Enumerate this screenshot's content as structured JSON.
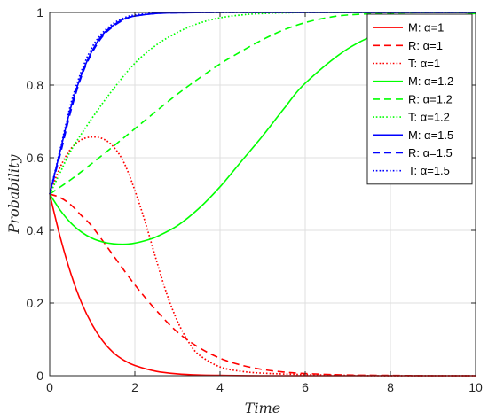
{
  "chart_data": {
    "type": "line",
    "title": "",
    "xlabel": "Time",
    "ylabel": "Probability",
    "xlim": [
      0,
      10
    ],
    "ylim": [
      0,
      1
    ],
    "xticks": [
      0,
      2,
      4,
      6,
      8,
      10
    ],
    "yticks": [
      0,
      0.2,
      0.4,
      0.6,
      0.8,
      1
    ],
    "xtick_labels": [
      "0",
      "2",
      "4",
      "6",
      "8",
      "10"
    ],
    "ytick_labels": [
      "0",
      "0.2",
      "0.4",
      "0.6",
      "0.8",
      "1"
    ],
    "grid": true,
    "legend_position": "top-right",
    "series": [
      {
        "name": "M: α=1",
        "color": "#ff0000",
        "dash": "solid",
        "x": [
          0,
          0.25,
          0.5,
          0.75,
          1,
          1.25,
          1.5,
          1.75,
          2,
          2.5,
          3,
          3.5,
          4,
          5,
          6,
          7,
          8,
          9,
          10
        ],
        "y": [
          0.5,
          0.38,
          0.28,
          0.2,
          0.14,
          0.095,
          0.063,
          0.042,
          0.028,
          0.012,
          0.005,
          0.002,
          0.001,
          0,
          0,
          0,
          0,
          0,
          0
        ]
      },
      {
        "name": "R: α=1",
        "color": "#ff0000",
        "dash": "dashed",
        "x": [
          0,
          0.25,
          0.5,
          0.75,
          1,
          1.5,
          2,
          2.5,
          3,
          3.5,
          4,
          4.5,
          5,
          5.5,
          6,
          7,
          8,
          9,
          10
        ],
        "y": [
          0.5,
          0.49,
          0.47,
          0.44,
          0.41,
          0.33,
          0.25,
          0.18,
          0.12,
          0.078,
          0.048,
          0.029,
          0.017,
          0.01,
          0.006,
          0.002,
          0.001,
          0,
          0
        ]
      },
      {
        "name": "T: α=1",
        "color": "#ff0000",
        "dash": "dotted",
        "x": [
          0,
          0.25,
          0.5,
          0.75,
          1,
          1.25,
          1.5,
          1.75,
          2,
          2.25,
          2.5,
          2.75,
          3,
          3.25,
          3.5,
          4,
          4.5,
          5,
          6,
          7,
          8,
          10
        ],
        "y": [
          0.5,
          0.575,
          0.625,
          0.65,
          0.657,
          0.652,
          0.63,
          0.585,
          0.51,
          0.42,
          0.32,
          0.225,
          0.15,
          0.095,
          0.058,
          0.024,
          0.012,
          0.007,
          0.003,
          0.001,
          0,
          0
        ]
      },
      {
        "name": "M: α=1.2",
        "color": "#00ff00",
        "dash": "solid",
        "x": [
          0,
          0.25,
          0.5,
          0.75,
          1,
          1.25,
          1.5,
          1.8,
          2,
          2.25,
          2.5,
          3,
          3.5,
          4,
          4.5,
          5,
          5.5,
          6,
          7,
          8,
          9,
          10
        ],
        "y": [
          0.5,
          0.455,
          0.42,
          0.395,
          0.378,
          0.368,
          0.363,
          0.362,
          0.365,
          0.372,
          0.382,
          0.413,
          0.46,
          0.52,
          0.59,
          0.66,
          0.735,
          0.805,
          0.9,
          0.955,
          0.985,
          0.997
        ]
      },
      {
        "name": "R: α=1.2",
        "color": "#00ff00",
        "dash": "dashed",
        "x": [
          0,
          0.5,
          1,
          1.5,
          2,
          2.5,
          3,
          3.5,
          4,
          4.5,
          5,
          5.5,
          6,
          6.5,
          7,
          8,
          9,
          10
        ],
        "y": [
          0.5,
          0.54,
          0.585,
          0.632,
          0.68,
          0.728,
          0.775,
          0.818,
          0.858,
          0.893,
          0.925,
          0.952,
          0.972,
          0.985,
          0.993,
          0.998,
          1,
          1
        ]
      },
      {
        "name": "T: α=1.2",
        "color": "#00ff00",
        "dash": "dotted",
        "x": [
          0,
          0.25,
          0.5,
          1,
          1.5,
          2,
          2.5,
          3,
          3.5,
          4,
          4.5,
          5,
          6,
          7,
          8,
          10
        ],
        "y": [
          0.5,
          0.56,
          0.62,
          0.71,
          0.79,
          0.86,
          0.91,
          0.945,
          0.97,
          0.985,
          0.993,
          0.997,
          1,
          1,
          1,
          1
        ]
      },
      {
        "name": "M: α=1.5",
        "color": "#0000ff",
        "dash": "solid",
        "x": [
          0,
          0.25,
          0.5,
          0.75,
          1,
          1.25,
          1.5,
          1.75,
          2,
          2.5,
          3,
          4,
          5,
          6,
          8,
          10
        ],
        "y": [
          0.5,
          0.62,
          0.74,
          0.83,
          0.895,
          0.94,
          0.965,
          0.982,
          0.99,
          0.997,
          0.999,
          1,
          1,
          1,
          1,
          1
        ]
      },
      {
        "name": "R: α=1.5",
        "color": "#0000ff",
        "dash": "dashed",
        "x": [
          0,
          0.25,
          0.5,
          0.75,
          1,
          1.25,
          1.5,
          1.75,
          2,
          2.5,
          3,
          4,
          5,
          6,
          8,
          10
        ],
        "y": [
          0.5,
          0.61,
          0.73,
          0.825,
          0.89,
          0.935,
          0.962,
          0.98,
          0.99,
          0.997,
          0.999,
          1,
          1,
          1,
          1,
          1
        ]
      },
      {
        "name": "T: α=1.5",
        "color": "#0000ff",
        "dash": "dotted",
        "x": [
          0,
          0.25,
          0.5,
          0.75,
          1,
          1.25,
          1.5,
          1.75,
          2,
          2.5,
          3,
          4,
          5,
          6,
          8,
          10
        ],
        "y": [
          0.5,
          0.625,
          0.75,
          0.84,
          0.905,
          0.945,
          0.97,
          0.985,
          0.993,
          0.998,
          1,
          1,
          1,
          1,
          1,
          1
        ]
      }
    ]
  }
}
